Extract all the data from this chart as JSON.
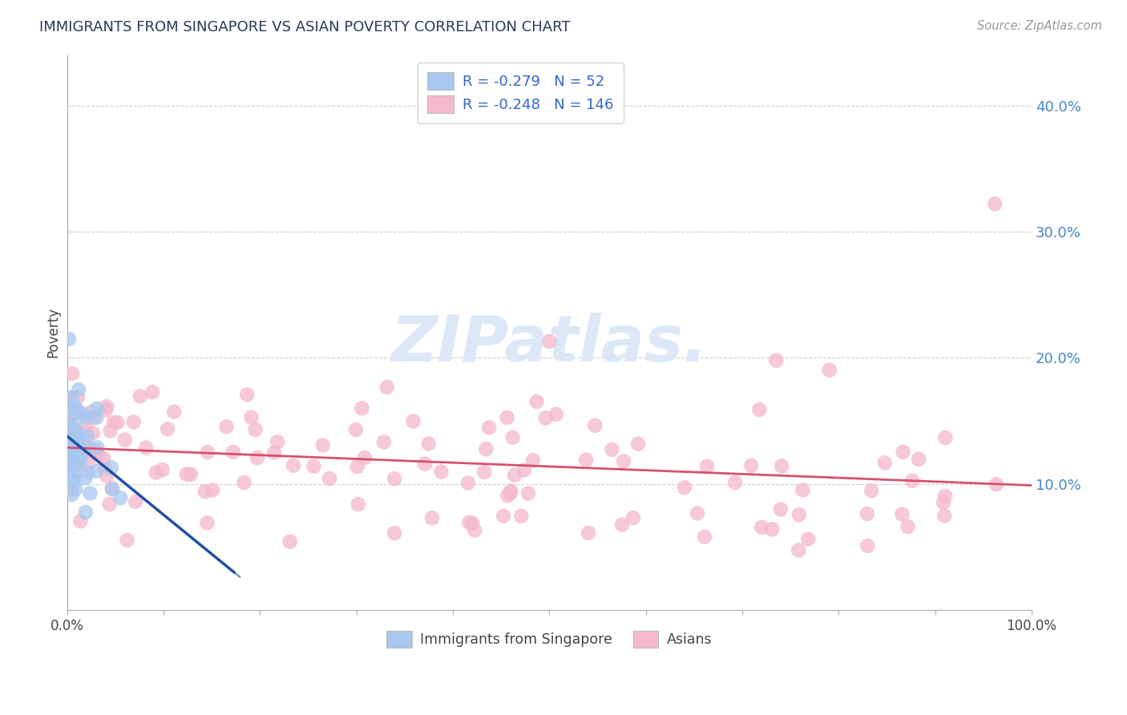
{
  "title": "IMMIGRANTS FROM SINGAPORE VS ASIAN POVERTY CORRELATION CHART",
  "source": "Source: ZipAtlas.com",
  "ylabel": "Poverty",
  "r_singapore": -0.279,
  "n_singapore": 52,
  "r_asians": -0.248,
  "n_asians": 146,
  "y_ticks": [
    0.1,
    0.2,
    0.3,
    0.4
  ],
  "y_tick_labels": [
    "10.0%",
    "20.0%",
    "30.0%",
    "40.0%"
  ],
  "xlim": [
    0.0,
    1.0
  ],
  "ylim": [
    0.0,
    0.44
  ],
  "color_singapore": "#a8c8f0",
  "color_asians": "#f5b8cc",
  "line_color_singapore": "#2050a0",
  "line_color_asians": "#d85070",
  "background_color": "#ffffff",
  "watermark_color": "#dce8f8",
  "grid_color": "#cccccc",
  "title_color": "#2a3a5a",
  "ytick_color": "#4488cc",
  "xtick_color": "#444444",
  "ylabel_color": "#444444"
}
